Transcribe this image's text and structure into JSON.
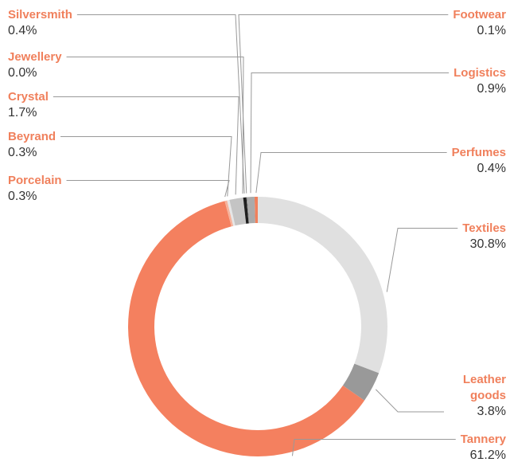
{
  "chart_data": {
    "type": "pie",
    "categories": [
      "Perfumes",
      "Textiles",
      "Leather goods",
      "Tannery",
      "Porcelain",
      "Beyrand",
      "Crystal",
      "Jewellery",
      "Silversmith",
      "Footwear",
      "Logistics"
    ],
    "values": [
      0.4,
      30.8,
      3.8,
      61.2,
      0.3,
      0.3,
      1.7,
      0.0,
      0.4,
      0.1,
      0.9
    ],
    "value_labels": [
      "0.4%",
      "30.8%",
      "3.8%",
      "61.2%",
      "0.3%",
      "0.3%",
      "1.7%",
      "0.0%",
      "0.4%",
      "0.1%",
      "0.9%"
    ],
    "colors": [
      "#f0805c",
      "#e0e0e0",
      "#999999",
      "#f4805f",
      "#f6b39c",
      "#e6e6e6",
      "#c4c4c4",
      "#555555",
      "#1e1e1e",
      "#888888",
      "#aaaaaa"
    ]
  }
}
